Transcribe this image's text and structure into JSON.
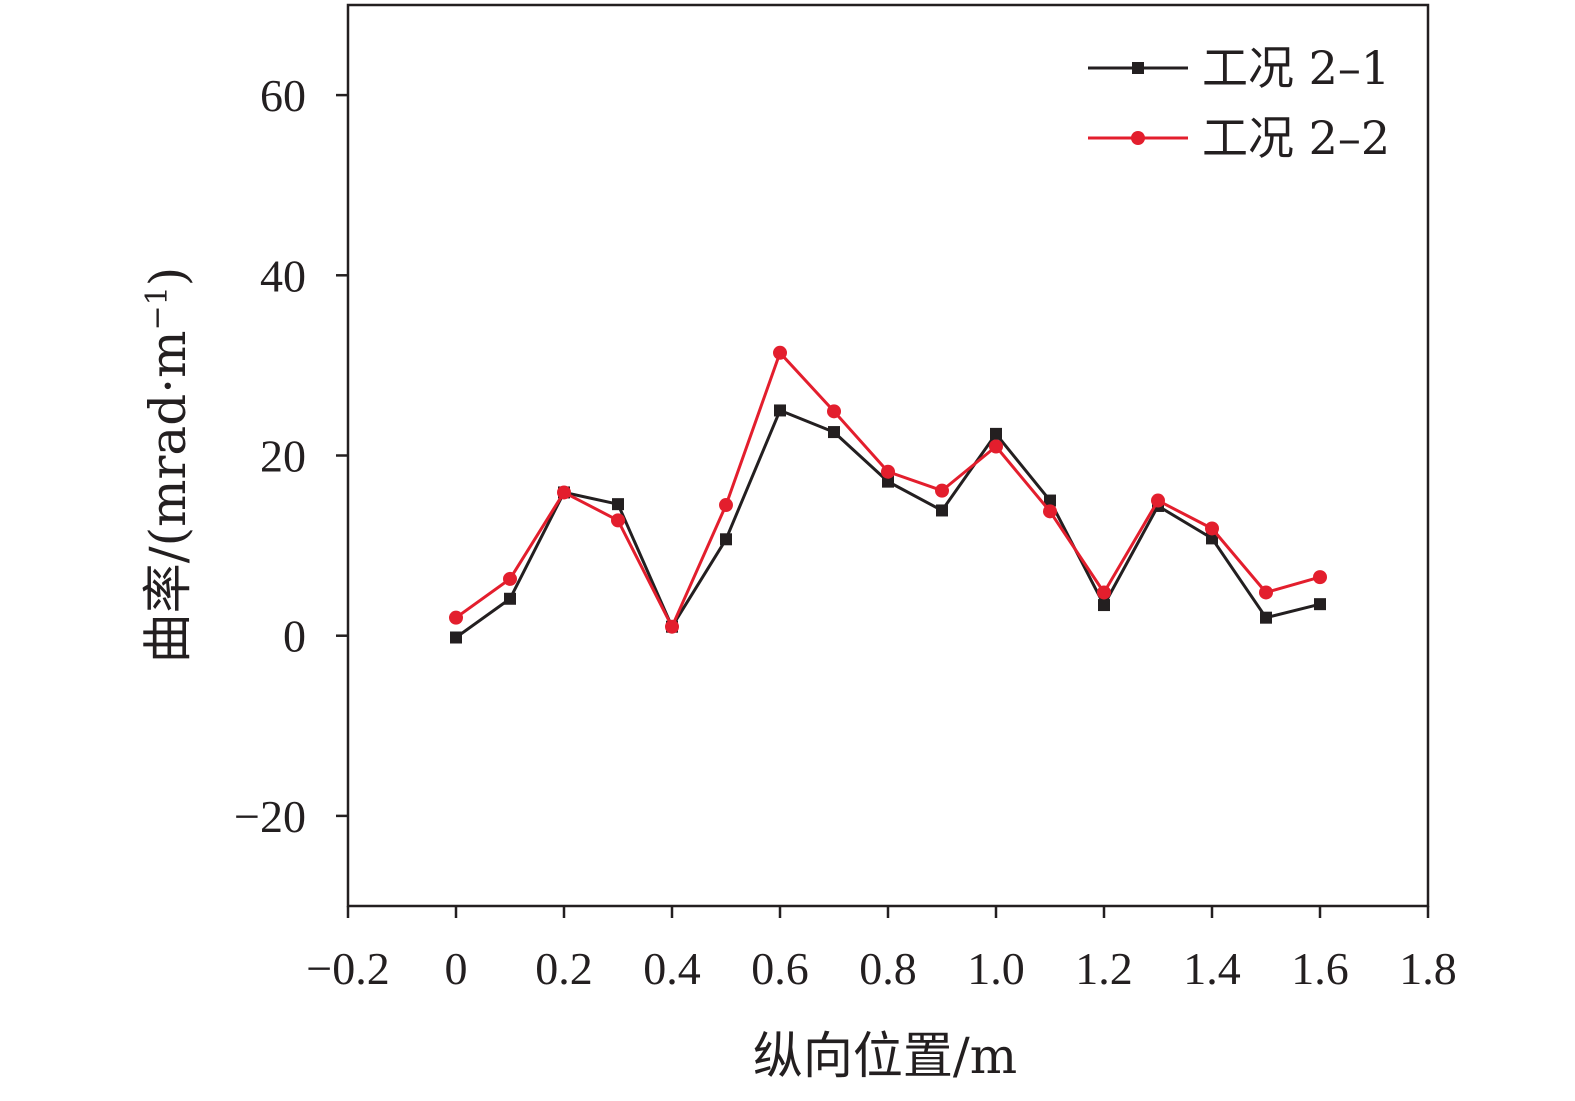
{
  "chart_data": {
    "type": "line",
    "xlabel": "纵向位置/m",
    "ylabel": "曲率/(mrad·m",
    "ylabel_sup": "−1",
    "ylabel_close": ")",
    "xlim": [
      -0.2,
      1.8
    ],
    "ylim": [
      -30,
      70
    ],
    "xticks": [
      -0.2,
      0,
      0.2,
      0.4,
      0.6,
      0.8,
      1.0,
      1.2,
      1.4,
      1.6,
      1.8
    ],
    "xtick_labels": [
      "−0.2",
      "0",
      "0.2",
      "0.4",
      "0.6",
      "0.8",
      "1.0",
      "1.2",
      "1.4",
      "1.6",
      "1.8"
    ],
    "yticks": [
      -20,
      0,
      20,
      40,
      60
    ],
    "ytick_labels": [
      "−20",
      "0",
      "20",
      "40",
      "60"
    ],
    "grid": false,
    "legend_position": "top-right",
    "x": [
      0,
      0.1,
      0.2,
      0.3,
      0.4,
      0.5,
      0.6,
      0.7,
      0.8,
      0.9,
      1.0,
      1.1,
      1.2,
      1.3,
      1.4,
      1.5,
      1.6
    ],
    "series": [
      {
        "name": "工况 2–1",
        "color": "#231f20",
        "marker": "square",
        "values": [
          -0.2,
          4.1,
          15.9,
          14.6,
          1.0,
          10.7,
          25.0,
          22.6,
          17.1,
          13.9,
          22.4,
          15.0,
          3.4,
          14.4,
          10.8,
          2.0,
          3.5
        ]
      },
      {
        "name": "工况 2–2",
        "color": "#e31e2d",
        "marker": "circle",
        "values": [
          2.0,
          6.3,
          15.9,
          12.8,
          1.0,
          14.5,
          31.4,
          24.9,
          18.2,
          16.1,
          21.0,
          13.8,
          4.8,
          15.0,
          11.9,
          4.8,
          6.5
        ]
      }
    ]
  }
}
